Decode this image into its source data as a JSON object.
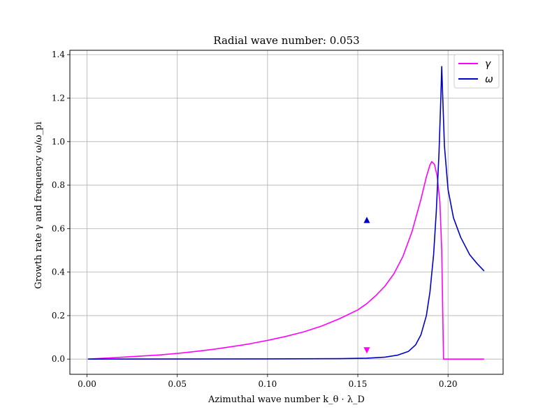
{
  "chart_data": {
    "type": "line",
    "title": "Radial wave number: 0.053",
    "xlabel": "Azimuthal wave number k_θ · λ_D",
    "ylabel": "Growth rate γ and frequency ω/ω_pi",
    "xlim": [
      -0.0095,
      0.2305
    ],
    "ylim": [
      -0.07,
      1.42
    ],
    "grid": true,
    "legend_position": "top-right",
    "x_ticks": [
      "0.00",
      "0.05",
      "0.10",
      "0.15",
      "0.20"
    ],
    "x_tick_values": [
      0.0,
      0.05,
      0.1,
      0.15,
      0.2
    ],
    "y_ticks": [
      "0.0",
      "0.2",
      "0.4",
      "0.6",
      "0.8",
      "1.0",
      "1.2",
      "1.4"
    ],
    "y_tick_values": [
      0.0,
      0.2,
      0.4,
      0.6,
      0.8,
      1.0,
      1.2,
      1.4
    ],
    "series": [
      {
        "name": "γ",
        "color": "#ff00ff",
        "points": [
          [
            0.0005,
            0.0
          ],
          [
            0.02,
            0.009
          ],
          [
            0.04,
            0.019
          ],
          [
            0.05,
            0.026
          ],
          [
            0.06,
            0.035
          ],
          [
            0.07,
            0.045
          ],
          [
            0.08,
            0.057
          ],
          [
            0.09,
            0.07
          ],
          [
            0.1,
            0.086
          ],
          [
            0.11,
            0.104
          ],
          [
            0.12,
            0.125
          ],
          [
            0.13,
            0.152
          ],
          [
            0.14,
            0.186
          ],
          [
            0.15,
            0.226
          ],
          [
            0.155,
            0.255
          ],
          [
            0.16,
            0.292
          ],
          [
            0.165,
            0.335
          ],
          [
            0.17,
            0.392
          ],
          [
            0.175,
            0.472
          ],
          [
            0.18,
            0.585
          ],
          [
            0.185,
            0.735
          ],
          [
            0.188,
            0.838
          ],
          [
            0.19,
            0.893
          ],
          [
            0.191,
            0.908
          ],
          [
            0.1925,
            0.895
          ],
          [
            0.194,
            0.84
          ],
          [
            0.1955,
            0.72
          ],
          [
            0.1965,
            0.5
          ],
          [
            0.197,
            0.25
          ],
          [
            0.1975,
            0.0
          ],
          [
            0.22,
            0.0
          ]
        ]
      },
      {
        "name": "ω",
        "color": "#0000cc",
        "points": [
          [
            0.0005,
            0.0
          ],
          [
            0.05,
            0.0005
          ],
          [
            0.1,
            0.001
          ],
          [
            0.14,
            0.002
          ],
          [
            0.155,
            0.004
          ],
          [
            0.165,
            0.009
          ],
          [
            0.172,
            0.018
          ],
          [
            0.178,
            0.035
          ],
          [
            0.182,
            0.065
          ],
          [
            0.185,
            0.112
          ],
          [
            0.188,
            0.2
          ],
          [
            0.19,
            0.31
          ],
          [
            0.192,
            0.48
          ],
          [
            0.1935,
            0.68
          ],
          [
            0.195,
            0.95
          ],
          [
            0.196,
            1.2
          ],
          [
            0.1965,
            1.345
          ],
          [
            0.197,
            1.22
          ],
          [
            0.198,
            0.98
          ],
          [
            0.2,
            0.78
          ],
          [
            0.203,
            0.65
          ],
          [
            0.207,
            0.56
          ],
          [
            0.212,
            0.48
          ],
          [
            0.216,
            0.44
          ],
          [
            0.22,
            0.405
          ]
        ]
      }
    ],
    "markers": [
      {
        "shape": "triangle-up",
        "color": "#0000cc",
        "x": 0.155,
        "y": 0.64
      },
      {
        "shape": "triangle-down",
        "color": "#ff00ff",
        "x": 0.155,
        "y": 0.04
      }
    ]
  }
}
